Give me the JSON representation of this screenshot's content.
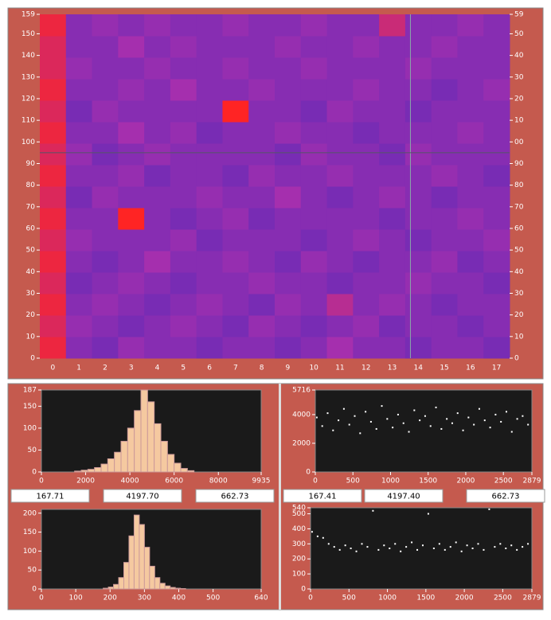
{
  "chart_data": [
    {
      "type": "heatmap",
      "categories": [
        "0",
        "1",
        "2",
        "3",
        "4",
        "5",
        "6",
        "7",
        "8",
        "9",
        "10",
        "11",
        "12",
        "13",
        "14",
        "15",
        "16",
        "17"
      ],
      "ylim": [
        0,
        159
      ],
      "yticks": [
        0,
        10,
        20,
        30,
        40,
        50,
        60,
        70,
        80,
        90,
        100,
        110,
        120,
        130,
        140,
        150,
        159
      ],
      "y2lim": [
        0,
        159
      ],
      "y2ticks": [
        0,
        10,
        20,
        30,
        40,
        50,
        60,
        70,
        80,
        90,
        {
          "value": 100,
          "label": "00"
        },
        {
          "value": 110,
          "label": "10"
        },
        {
          "value": 120,
          "label": "20"
        },
        {
          "value": 130,
          "label": "30"
        },
        {
          "value": 140,
          "label": "40"
        },
        {
          "value": 150,
          "label": "50"
        },
        {
          "value": 159,
          "label": "59"
        }
      ],
      "zlim": [
        0,
        10
      ],
      "colorscale": [
        "#5a2ab8",
        "#a52fae",
        "#ff2424"
      ],
      "cursor": {
        "x": 13.7,
        "y": 95
      },
      "z": [
        [
          9,
          3,
          2,
          4,
          3,
          3,
          2,
          3,
          3,
          2,
          3,
          5,
          3,
          3,
          2,
          3,
          3,
          2
        ],
        [
          8,
          4,
          3,
          2,
          3,
          4,
          3,
          2,
          4,
          3,
          2,
          3,
          4,
          2,
          3,
          3,
          2,
          3
        ],
        [
          9,
          3,
          4,
          3,
          2,
          3,
          4,
          3,
          2,
          4,
          3,
          6,
          3,
          4,
          3,
          2,
          3,
          3
        ],
        [
          8,
          2,
          3,
          4,
          3,
          2,
          3,
          3,
          4,
          3,
          3,
          2,
          3,
          3,
          4,
          3,
          3,
          2
        ],
        [
          9,
          3,
          2,
          3,
          5,
          3,
          3,
          4,
          3,
          2,
          4,
          3,
          2,
          3,
          3,
          4,
          2,
          3
        ],
        [
          8,
          4,
          3,
          3,
          3,
          4,
          2,
          3,
          3,
          3,
          2,
          3,
          4,
          3,
          2,
          3,
          3,
          4
        ],
        [
          9,
          3,
          3,
          10,
          3,
          2,
          3,
          4,
          2,
          3,
          3,
          3,
          3,
          2,
          3,
          3,
          4,
          3
        ],
        [
          8,
          2,
          4,
          3,
          3,
          3,
          4,
          3,
          3,
          5,
          3,
          2,
          3,
          4,
          3,
          2,
          3,
          3
        ],
        [
          9,
          3,
          3,
          4,
          2,
          3,
          3,
          2,
          4,
          3,
          3,
          4,
          3,
          3,
          3,
          4,
          3,
          2
        ],
        [
          8,
          4,
          2,
          3,
          4,
          3,
          3,
          3,
          3,
          2,
          4,
          3,
          3,
          2,
          4,
          3,
          3,
          3
        ],
        [
          9,
          3,
          3,
          5,
          3,
          4,
          2,
          3,
          3,
          4,
          3,
          3,
          2,
          3,
          3,
          3,
          4,
          3
        ],
        [
          8,
          2,
          4,
          3,
          3,
          3,
          3,
          10,
          3,
          3,
          2,
          4,
          3,
          3,
          2,
          3,
          3,
          3
        ],
        [
          9,
          3,
          3,
          4,
          3,
          5,
          3,
          3,
          4,
          3,
          3,
          3,
          4,
          3,
          3,
          2,
          3,
          4
        ],
        [
          8,
          4,
          3,
          3,
          4,
          3,
          3,
          4,
          3,
          3,
          4,
          3,
          3,
          3,
          4,
          3,
          3,
          3
        ],
        [
          8,
          3,
          3,
          5,
          3,
          4,
          3,
          3,
          3,
          4,
          3,
          3,
          4,
          3,
          3,
          4,
          3,
          3
        ],
        [
          9,
          3,
          4,
          3,
          4,
          3,
          3,
          4,
          3,
          3,
          4,
          3,
          3,
          7,
          3,
          3,
          4,
          3
        ]
      ]
    },
    {
      "type": "histogram",
      "xlim": [
        0,
        9935
      ],
      "xticks": [
        0,
        2000,
        4000,
        6000,
        8000,
        9935
      ],
      "ylim": [
        0,
        187
      ],
      "yticks": [
        0,
        50,
        100,
        150,
        187
      ],
      "bins": [
        1500,
        1800,
        2100,
        2400,
        2700,
        3000,
        3300,
        3600,
        3900,
        4200,
        4500,
        4800,
        5100,
        5400,
        5700,
        6000,
        6300,
        6600,
        6900
      ],
      "counts": [
        2,
        4,
        6,
        10,
        18,
        30,
        45,
        70,
        100,
        140,
        187,
        160,
        110,
        70,
        40,
        20,
        8,
        3
      ],
      "color": "#f5c9a0"
    },
    {
      "type": "histogram",
      "xlim": [
        0,
        640
      ],
      "xticks": [
        0,
        100,
        200,
        300,
        400,
        500,
        640
      ],
      "ylim": [
        0,
        210
      ],
      "yticks": [
        0,
        50,
        100,
        150,
        200
      ],
      "bins": [
        180,
        195,
        210,
        225,
        240,
        255,
        270,
        285,
        300,
        315,
        330,
        345,
        360,
        375,
        390,
        405,
        420
      ],
      "counts": [
        2,
        5,
        12,
        30,
        70,
        140,
        195,
        170,
        110,
        60,
        30,
        15,
        8,
        4,
        2,
        1
      ],
      "color": "#f5c9a0"
    },
    {
      "type": "scatter",
      "xlim": [
        0,
        2879
      ],
      "xticks": [
        0,
        500,
        1000,
        1500,
        2000,
        2500,
        2879
      ],
      "ylim": [
        0,
        5716
      ],
      "yticks": [
        0,
        2000,
        4000,
        5716
      ],
      "color": "#ffffff",
      "x": [
        20,
        92,
        164,
        236,
        308,
        380,
        452,
        524,
        596,
        668,
        740,
        812,
        884,
        956,
        1028,
        1100,
        1172,
        1244,
        1316,
        1388,
        1460,
        1532,
        1604,
        1676,
        1748,
        1820,
        1892,
        1964,
        2036,
        2108,
        2180,
        2252,
        2324,
        2396,
        2468,
        2540,
        2612,
        2684,
        2756,
        2828
      ],
      "y": [
        3800,
        3200,
        4100,
        2900,
        3600,
        4400,
        3300,
        3900,
        2700,
        4200,
        3500,
        3000,
        4600,
        3700,
        3100,
        4000,
        3400,
        2800,
        4300,
        3600,
        3900,
        3200,
        4500,
        3000,
        3700,
        3400,
        4100,
        2900,
        3800,
        3300,
        4400,
        3600,
        3100,
        4000,
        3500,
        4200,
        2800,
        3700,
        3900,
        3300
      ]
    },
    {
      "type": "scatter",
      "xlim": [
        0,
        2879
      ],
      "xticks": [
        0,
        500,
        1000,
        1500,
        2000,
        2500,
        2879
      ],
      "ylim": [
        0,
        540
      ],
      "yticks": [
        0,
        100,
        200,
        300,
        400,
        500,
        540
      ],
      "color": "#ffffff",
      "x": [
        20,
        92,
        164,
        236,
        308,
        380,
        452,
        524,
        596,
        668,
        740,
        812,
        884,
        956,
        1028,
        1100,
        1172,
        1244,
        1316,
        1388,
        1460,
        1532,
        1604,
        1676,
        1748,
        1820,
        1892,
        1964,
        2036,
        2108,
        2180,
        2252,
        2324,
        2396,
        2468,
        2540,
        2612,
        2684,
        2756,
        2828
      ],
      "y": [
        380,
        350,
        340,
        300,
        280,
        260,
        290,
        270,
        250,
        300,
        280,
        520,
        260,
        290,
        270,
        300,
        250,
        280,
        310,
        260,
        290,
        500,
        270,
        300,
        260,
        280,
        310,
        250,
        290,
        270,
        300,
        260,
        530,
        280,
        300,
        270,
        290,
        260,
        280,
        300
      ]
    }
  ],
  "stats": [
    "167.71",
    "4197.70",
    "662.73",
    "167.41",
    "4197.40",
    "662.73"
  ]
}
